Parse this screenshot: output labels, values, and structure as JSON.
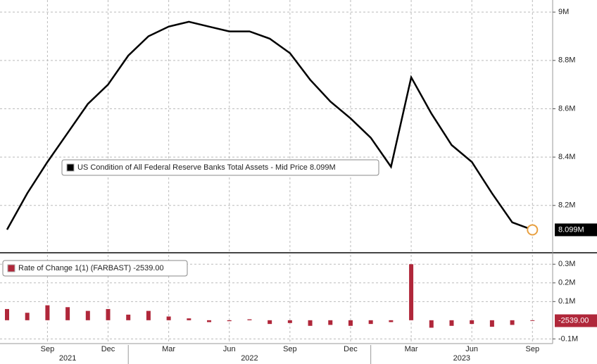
{
  "chart_data": [
    {
      "type": "line",
      "x": [
        "2021-07",
        "2021-08",
        "2021-09",
        "2021-10",
        "2021-11",
        "2021-12",
        "2022-01",
        "2022-02",
        "2022-03",
        "2022-04",
        "2022-05",
        "2022-06",
        "2022-07",
        "2022-08",
        "2022-09",
        "2022-10",
        "2022-11",
        "2022-12",
        "2023-01",
        "2023-02",
        "2023-03",
        "2023-04",
        "2023-05",
        "2023-06",
        "2023-07",
        "2023-08",
        "2023-09"
      ],
      "series": [
        {
          "name": "US Condition of All Federal Reserve Banks Total Assets - Mid Price 8.099M",
          "color": "#000000",
          "values": [
            8100000,
            8250000,
            8380000,
            8500000,
            8620000,
            8700000,
            8820000,
            8900000,
            8940000,
            8960000,
            8940000,
            8920000,
            8920000,
            8890000,
            8830000,
            8720000,
            8630000,
            8560000,
            8480000,
            8360000,
            8730000,
            8580000,
            8450000,
            8380000,
            8250000,
            8130000,
            8099000
          ],
          "value_labels": [
            null,
            null,
            null,
            null,
            null,
            null,
            null,
            null,
            null,
            null,
            null,
            null,
            null,
            null,
            null,
            null,
            null,
            null,
            null,
            null,
            null,
            null,
            null,
            null,
            null,
            null,
            "8.099M"
          ]
        }
      ],
      "xlim": [
        "2021-07",
        "2023-10"
      ],
      "ylim": [
        8010000,
        9050000
      ],
      "yticks": [
        {
          "value": 8200000,
          "label": "8.2M"
        },
        {
          "value": 8400000,
          "label": "8.4M"
        },
        {
          "value": 8600000,
          "label": "8.6M"
        },
        {
          "value": 8800000,
          "label": "8.8M"
        },
        {
          "value": 9000000,
          "label": "9M"
        }
      ],
      "grid": true
    },
    {
      "type": "bar",
      "x": [
        "2021-07",
        "2021-08",
        "2021-09",
        "2021-10",
        "2021-11",
        "2021-12",
        "2022-01",
        "2022-02",
        "2022-03",
        "2022-04",
        "2022-05",
        "2022-06",
        "2022-07",
        "2022-08",
        "2022-09",
        "2022-10",
        "2022-11",
        "2022-12",
        "2023-01",
        "2023-02",
        "2023-03",
        "2023-04",
        "2023-05",
        "2023-06",
        "2023-07",
        "2023-08",
        "2023-09"
      ],
      "series": [
        {
          "name": "Rate of Change 1(1) (FARBAST) -2539.00",
          "color": "#b0273a",
          "values": [
            60000,
            40000,
            80000,
            70000,
            50000,
            60000,
            30000,
            50000,
            20000,
            10000,
            -10000,
            -5000,
            5000,
            -20000,
            -15000,
            -30000,
            -25000,
            -30000,
            -20000,
            -10000,
            300000,
            -40000,
            -30000,
            -20000,
            -35000,
            -25000,
            -2539
          ],
          "value_labels": [
            null,
            null,
            null,
            null,
            null,
            null,
            null,
            null,
            null,
            null,
            null,
            null,
            null,
            null,
            null,
            null,
            null,
            null,
            null,
            null,
            null,
            null,
            null,
            null,
            null,
            null,
            "-2539.00"
          ]
        }
      ],
      "xlim": [
        "2021-07",
        "2023-10"
      ],
      "ylim": [
        -125000,
        350000
      ],
      "yticks": [
        {
          "value": -100000,
          "label": "-0.1M"
        },
        {
          "value": 100000,
          "label": "0.1M"
        },
        {
          "value": 200000,
          "label": "0.2M"
        },
        {
          "value": 300000,
          "label": "0.3M"
        }
      ],
      "xticks": [
        {
          "value": "2021-09",
          "label": "Sep"
        },
        {
          "value": "2021-12",
          "label": "Dec"
        },
        {
          "value": "2022-03",
          "label": "Mar"
        },
        {
          "value": "2022-06",
          "label": "Jun"
        },
        {
          "value": "2022-09",
          "label": "Sep"
        },
        {
          "value": "2022-12",
          "label": "Dec"
        },
        {
          "value": "2023-03",
          "label": "Mar"
        },
        {
          "value": "2023-06",
          "label": "Jun"
        },
        {
          "value": "2023-09",
          "label": "Sep"
        }
      ],
      "xgroups": [
        "2021",
        "2022",
        "2023"
      ],
      "grid": true
    }
  ]
}
